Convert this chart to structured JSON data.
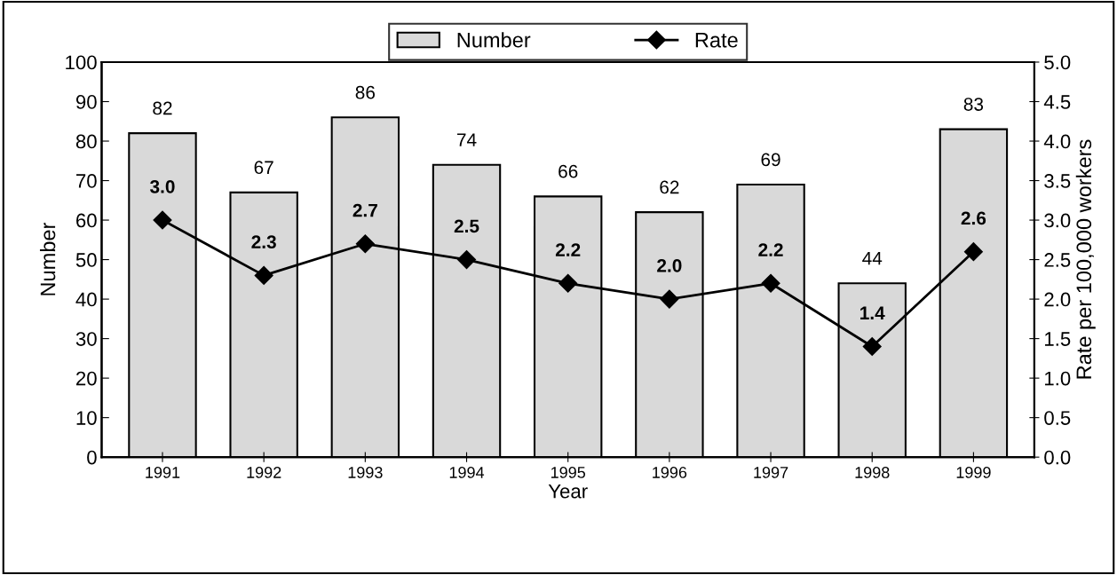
{
  "chart_data": {
    "type": "bar",
    "xlabel": "Year",
    "ylabel": "Number",
    "y2label": "Rate per 100,000 workers",
    "categories": [
      "1991",
      "1992",
      "1993",
      "1994",
      "1995",
      "1996",
      "1997",
      "1998",
      "1999"
    ],
    "series": [
      {
        "name": "Number",
        "color": "#d9d9d9",
        "values": [
          82,
          67,
          86,
          74,
          66,
          62,
          69,
          44,
          83
        ],
        "value_labels": [
          "82",
          "67",
          "86",
          "74",
          "66",
          "62",
          "69",
          "44",
          "83"
        ]
      },
      {
        "name": "Rate",
        "type": "line",
        "axis": "y2",
        "color": "#000000",
        "marker": "diamond",
        "values": [
          3.0,
          2.3,
          2.7,
          2.5,
          2.2,
          2.0,
          2.2,
          1.4,
          2.6
        ],
        "value_labels": [
          "3.0",
          "2.3",
          "2.7",
          "2.5",
          "2.2",
          "2.0",
          "2.2",
          "1.4",
          "2.6"
        ]
      }
    ],
    "ylim": [
      0,
      100
    ],
    "yticks": [
      0,
      10,
      20,
      30,
      40,
      50,
      60,
      70,
      80,
      90,
      100
    ],
    "y2lim": [
      0,
      5
    ],
    "y2ticks": [
      {
        "value": 0,
        "label": "0.0"
      },
      0.5,
      {
        "value": 1,
        "label": "1.0"
      },
      1.5,
      {
        "value": 2,
        "label": "2.0"
      },
      2.5,
      {
        "value": 3,
        "label": "3.0"
      },
      3.5,
      {
        "value": 4,
        "label": "4.0"
      },
      4.5,
      {
        "value": 5,
        "label": "5.0"
      }
    ],
    "legend": "top",
    "grid": false
  }
}
